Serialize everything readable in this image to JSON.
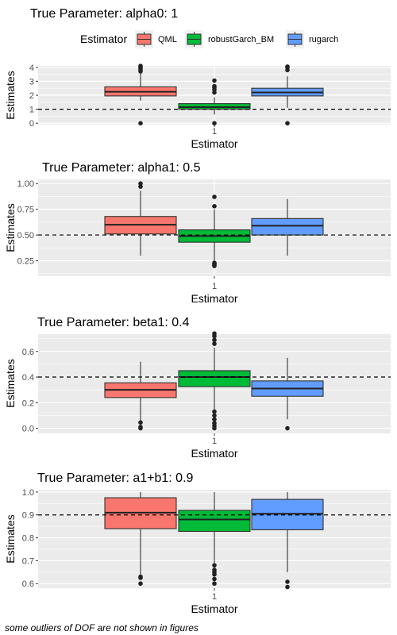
{
  "legend": {
    "title": "Estimator",
    "items": [
      {
        "label": "QML",
        "color": "#F8766D"
      },
      {
        "label": "robustGarch_BM",
        "color": "#00BA38"
      },
      {
        "label": "rugarch",
        "color": "#619CFF"
      }
    ]
  },
  "caption": "some outliers of DOF are not shown in figures",
  "chart_data": [
    {
      "type": "boxplot",
      "title": "True Parameter: alpha0: 1",
      "xlabel": "Estimator",
      "ylabel": "Estimates",
      "x_tick": "1",
      "ylim": [
        -0.1,
        4.1
      ],
      "yticks": [
        0,
        1,
        2,
        3,
        4
      ],
      "ytick_labels": [
        "0",
        "1",
        "2",
        "3",
        "4"
      ],
      "reference_line": 1,
      "series": [
        {
          "name": "QML",
          "whisker_low": 1.62,
          "q1": 1.95,
          "median": 2.25,
          "q3": 2.6,
          "whisker_high": 3.55,
          "outliers": [
            0,
            3.7,
            3.8,
            3.9,
            4.0,
            4.1
          ]
        },
        {
          "name": "robustGarch_BM",
          "whisker_low": 0.62,
          "q1": 1.0,
          "median": 1.15,
          "q3": 1.4,
          "whisker_high": 1.85,
          "outliers": [
            0,
            2.2,
            2.4,
            2.55,
            2.65,
            3.05
          ]
        },
        {
          "name": "rugarch",
          "whisker_low": 1.1,
          "q1": 1.95,
          "median": 2.2,
          "q3": 2.5,
          "whisker_high": 3.35,
          "outliers": [
            0,
            3.8,
            4.0,
            4.05
          ]
        }
      ]
    },
    {
      "type": "boxplot",
      "title": "True Parameter: alpha1: 0.5",
      "xlabel": "Estimator",
      "ylabel": "Estimates",
      "x_tick": "1",
      "ylim": [
        0.1,
        1.04
      ],
      "yticks": [
        0.25,
        0.5,
        0.75,
        1.0
      ],
      "ytick_labels": [
        "0.25",
        "0.50",
        "0.75",
        "1.00"
      ],
      "reference_line": 0.5,
      "series": [
        {
          "name": "QML",
          "whisker_low": 0.3,
          "q1": 0.51,
          "median": 0.6,
          "q3": 0.68,
          "whisker_high": 0.93,
          "outliers": [
            0.97,
            1.0
          ]
        },
        {
          "name": "robustGarch_BM",
          "whisker_low": 0.24,
          "q1": 0.43,
          "median": 0.49,
          "q3": 0.55,
          "whisker_high": 0.75,
          "outliers": [
            0.2,
            0.21,
            0.22,
            0.23,
            0.78,
            0.87
          ]
        },
        {
          "name": "rugarch",
          "whisker_low": 0.3,
          "q1": 0.5,
          "median": 0.59,
          "q3": 0.66,
          "whisker_high": 0.85,
          "outliers": []
        }
      ]
    },
    {
      "type": "boxplot",
      "title": "True Parameter: beta1: 0.4",
      "xlabel": "Estimator",
      "ylabel": "Estimates",
      "x_tick": "1",
      "ylim": [
        -0.04,
        0.735
      ],
      "yticks": [
        0.0,
        0.2,
        0.4,
        0.6
      ],
      "ytick_labels": [
        "0.0",
        "0.2",
        "0.4",
        "0.6"
      ],
      "reference_line": 0.4,
      "series": [
        {
          "name": "QML",
          "whisker_low": 0.06,
          "q1": 0.24,
          "median": 0.3,
          "q3": 0.355,
          "whisker_high": 0.52,
          "outliers": [
            0,
            0.01,
            0.045
          ]
        },
        {
          "name": "robustGarch_BM",
          "whisker_low": 0.14,
          "q1": 0.325,
          "median": 0.4,
          "q3": 0.45,
          "whisker_high": 0.63,
          "outliers": [
            0,
            0.02,
            0.04,
            0.07,
            0.1,
            0.13,
            0.66,
            0.69,
            0.72,
            0.74
          ]
        },
        {
          "name": "rugarch",
          "whisker_low": 0.07,
          "q1": 0.25,
          "median": 0.31,
          "q3": 0.37,
          "whisker_high": 0.55,
          "outliers": [
            0
          ]
        }
      ]
    },
    {
      "type": "boxplot",
      "title": "True Parameter: a1+b1: 0.9",
      "xlabel": "Estimator",
      "ylabel": "Estimates",
      "x_tick": "1",
      "ylim": [
        0.58,
        1.01
      ],
      "yticks": [
        0.6,
        0.7,
        0.8,
        0.9,
        1.0
      ],
      "ytick_labels": [
        "0.6",
        "0.7",
        "0.8",
        "0.9",
        "1.0"
      ],
      "reference_line": 0.9,
      "series": [
        {
          "name": "QML",
          "whisker_low": 0.64,
          "q1": 0.84,
          "median": 0.91,
          "q3": 0.975,
          "whisker_high": 1.0,
          "outliers": [
            0.6,
            0.625,
            0.63
          ]
        },
        {
          "name": "robustGarch_BM",
          "whisker_low": 0.69,
          "q1": 0.828,
          "median": 0.88,
          "q3": 0.92,
          "whisker_high": 1.0,
          "outliers": [
            0.6,
            0.62,
            0.64,
            0.65,
            0.66,
            0.68
          ]
        },
        {
          "name": "rugarch",
          "whisker_low": 0.65,
          "q1": 0.835,
          "median": 0.905,
          "q3": 0.968,
          "whisker_high": 1.0,
          "outliers": [
            0.585,
            0.608
          ]
        }
      ]
    }
  ]
}
